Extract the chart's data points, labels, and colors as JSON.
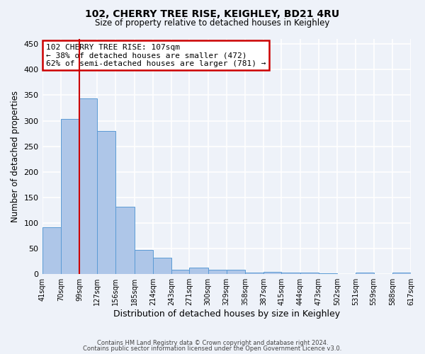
{
  "title": "102, CHERRY TREE RISE, KEIGHLEY, BD21 4RU",
  "subtitle": "Size of property relative to detached houses in Keighley",
  "xlabel": "Distribution of detached houses by size in Keighley",
  "ylabel": "Number of detached properties",
  "bar_color": "#aec6e8",
  "bar_edge_color": "#5b9bd5",
  "background_color": "#eef2f9",
  "grid_color": "#ffffff",
  "vline_x": 99,
  "vline_color": "#cc0000",
  "annotation_text": "102 CHERRY TREE RISE: 107sqm\n← 38% of detached houses are smaller (472)\n62% of semi-detached houses are larger (781) →",
  "annotation_box_color": "white",
  "annotation_box_edge_color": "#cc0000",
  "bins": [
    41,
    70,
    99,
    127,
    156,
    185,
    214,
    243,
    271,
    300,
    329,
    358,
    387,
    415,
    444,
    473,
    502,
    531,
    559,
    588,
    617
  ],
  "bin_labels": [
    "41sqm",
    "70sqm",
    "99sqm",
    "127sqm",
    "156sqm",
    "185sqm",
    "214sqm",
    "243sqm",
    "271sqm",
    "300sqm",
    "329sqm",
    "358sqm",
    "387sqm",
    "415sqm",
    "444sqm",
    "473sqm",
    "502sqm",
    "531sqm",
    "559sqm",
    "588sqm",
    "617sqm"
  ],
  "bar_heights": [
    92,
    303,
    343,
    280,
    132,
    47,
    32,
    9,
    13,
    8,
    9,
    3,
    5,
    3,
    3,
    2,
    0,
    3,
    0,
    3
  ],
  "ylim": [
    0,
    460
  ],
  "yticks": [
    0,
    50,
    100,
    150,
    200,
    250,
    300,
    350,
    400,
    450
  ],
  "footer_line1": "Contains HM Land Registry data © Crown copyright and database right 2024.",
  "footer_line2": "Contains public sector information licensed under the Open Government Licence v3.0."
}
